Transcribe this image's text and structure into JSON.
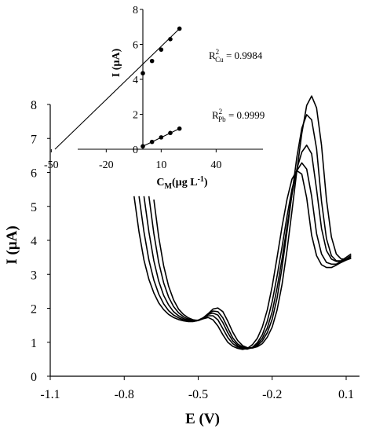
{
  "chart_data": [
    {
      "type": "line",
      "name": "main-voltammogram",
      "xlabel": "E (V)",
      "ylabel": "I (µA)",
      "xlim": [
        -1.1,
        0.15
      ],
      "ylim": [
        0,
        8
      ],
      "xticks": [
        -1.1,
        -0.8,
        -0.5,
        -0.2,
        0.1
      ],
      "xtick_labels": [
        "-1.1",
        "-0.8",
        "-0.5",
        "-0.2",
        "0.1"
      ],
      "yticks": [
        0,
        1,
        2,
        3,
        4,
        5,
        6,
        7,
        8
      ],
      "grid": false,
      "series": [
        {
          "x": [
            -0.68,
            -0.66,
            -0.64,
            -0.62,
            -0.6,
            -0.58,
            -0.56,
            -0.54,
            -0.52,
            -0.5,
            -0.48,
            -0.46,
            -0.44,
            -0.42,
            -0.4,
            -0.38,
            -0.36,
            -0.34,
            -0.32,
            -0.3,
            -0.28,
            -0.26,
            -0.24,
            -0.22,
            -0.2,
            -0.18,
            -0.16,
            -0.14,
            -0.12,
            -0.1,
            -0.08,
            -0.06,
            -0.04,
            -0.02,
            0,
            0.02,
            0.04,
            0.06,
            0.08,
            0.1,
            0.12
          ],
          "y": [
            5.2,
            4.1,
            3.25,
            2.65,
            2.25,
            1.98,
            1.82,
            1.72,
            1.66,
            1.64,
            1.7,
            1.84,
            1.98,
            2.01,
            1.9,
            1.62,
            1.3,
            1.05,
            0.9,
            0.84,
            0.83,
            0.87,
            0.96,
            1.15,
            1.45,
            1.95,
            2.7,
            3.7,
            4.85,
            6.05,
            7.15,
            7.97,
            8.25,
            7.9,
            6.8,
            5.2,
            4.1,
            3.6,
            3.45,
            3.45,
            3.55
          ]
        },
        {
          "x": [
            -0.7,
            -0.68,
            -0.66,
            -0.64,
            -0.62,
            -0.6,
            -0.58,
            -0.56,
            -0.54,
            -0.52,
            -0.5,
            -0.48,
            -0.46,
            -0.44,
            -0.42,
            -0.4,
            -0.38,
            -0.36,
            -0.34,
            -0.32,
            -0.3,
            -0.28,
            -0.26,
            -0.24,
            -0.22,
            -0.2,
            -0.18,
            -0.16,
            -0.14,
            -0.12,
            -0.1,
            -0.08,
            -0.06,
            -0.04,
            -0.02,
            0,
            0.02,
            0.04,
            0.06,
            0.08,
            0.1,
            0.12
          ],
          "y": [
            5.3,
            4.2,
            3.35,
            2.75,
            2.33,
            2.05,
            1.87,
            1.75,
            1.68,
            1.64,
            1.65,
            1.72,
            1.84,
            1.92,
            1.9,
            1.72,
            1.42,
            1.13,
            0.95,
            0.86,
            0.83,
            0.84,
            0.9,
            1.04,
            1.28,
            1.68,
            2.3,
            3.2,
            4.25,
            5.35,
            6.45,
            7.3,
            7.7,
            7.55,
            6.7,
            5.15,
            4.05,
            3.55,
            3.4,
            3.4,
            3.5,
            3.6
          ]
        },
        {
          "x": [
            -0.72,
            -0.7,
            -0.68,
            -0.66,
            -0.64,
            -0.62,
            -0.6,
            -0.58,
            -0.56,
            -0.54,
            -0.52,
            -0.5,
            -0.48,
            -0.46,
            -0.44,
            -0.42,
            -0.4,
            -0.38,
            -0.36,
            -0.34,
            -0.32,
            -0.3,
            -0.28,
            -0.26,
            -0.24,
            -0.22,
            -0.2,
            -0.18,
            -0.16,
            -0.14,
            -0.12,
            -0.1,
            -0.08,
            -0.06,
            -0.04,
            -0.02,
            0,
            0.02,
            0.04,
            0.06,
            0.08,
            0.1,
            0.12
          ],
          "y": [
            5.3,
            4.25,
            3.4,
            2.8,
            2.38,
            2.1,
            1.9,
            1.78,
            1.7,
            1.65,
            1.63,
            1.64,
            1.72,
            1.82,
            1.86,
            1.8,
            1.58,
            1.28,
            1.04,
            0.9,
            0.83,
            0.81,
            0.84,
            0.94,
            1.12,
            1.42,
            1.9,
            2.6,
            3.45,
            4.4,
            5.35,
            6.1,
            6.6,
            6.8,
            6.55,
            5.5,
            4.35,
            3.7,
            3.45,
            3.38,
            3.38,
            3.45,
            3.55
          ]
        },
        {
          "x": [
            -0.74,
            -0.72,
            -0.7,
            -0.68,
            -0.66,
            -0.64,
            -0.62,
            -0.6,
            -0.58,
            -0.56,
            -0.54,
            -0.52,
            -0.5,
            -0.48,
            -0.46,
            -0.44,
            -0.42,
            -0.4,
            -0.38,
            -0.36,
            -0.34,
            -0.32,
            -0.3,
            -0.28,
            -0.26,
            -0.24,
            -0.22,
            -0.2,
            -0.18,
            -0.16,
            -0.14,
            -0.12,
            -0.1,
            -0.08,
            -0.06,
            -0.04,
            -0.02,
            0,
            0.02,
            0.04,
            0.06,
            0.08,
            0.1,
            0.12
          ],
          "y": [
            5.3,
            4.25,
            3.42,
            2.83,
            2.42,
            2.13,
            1.93,
            1.8,
            1.72,
            1.66,
            1.63,
            1.62,
            1.64,
            1.71,
            1.78,
            1.78,
            1.66,
            1.4,
            1.14,
            0.96,
            0.86,
            0.81,
            0.8,
            0.85,
            0.99,
            1.22,
            1.62,
            2.2,
            2.95,
            3.8,
            4.7,
            5.5,
            6.05,
            6.28,
            6.1,
            5.3,
            4.2,
            3.6,
            3.35,
            3.3,
            3.3,
            3.38,
            3.45,
            3.5
          ]
        },
        {
          "x": [
            -0.76,
            -0.74,
            -0.72,
            -0.7,
            -0.68,
            -0.66,
            -0.64,
            -0.62,
            -0.6,
            -0.58,
            -0.56,
            -0.54,
            -0.52,
            -0.5,
            -0.48,
            -0.46,
            -0.44,
            -0.42,
            -0.4,
            -0.38,
            -0.36,
            -0.34,
            -0.32,
            -0.3,
            -0.28,
            -0.26,
            -0.24,
            -0.22,
            -0.2,
            -0.18,
            -0.16,
            -0.14,
            -0.12,
            -0.1,
            -0.08,
            -0.06,
            -0.04,
            -0.02,
            0,
            0.02,
            0.04,
            0.06,
            0.08,
            0.1,
            0.12
          ],
          "y": [
            5.3,
            4.25,
            3.42,
            2.85,
            2.45,
            2.16,
            1.96,
            1.82,
            1.73,
            1.67,
            1.63,
            1.61,
            1.61,
            1.64,
            1.69,
            1.73,
            1.66,
            1.48,
            1.22,
            1.0,
            0.88,
            0.82,
            0.79,
            0.82,
            0.93,
            1.12,
            1.45,
            1.95,
            2.65,
            3.5,
            4.4,
            5.2,
            5.8,
            6.05,
            5.95,
            5.25,
            4.15,
            3.55,
            3.28,
            3.2,
            3.2,
            3.27,
            3.35,
            3.42,
            3.47
          ]
        }
      ]
    },
    {
      "type": "scatter",
      "name": "inset-calibration",
      "xlabel_base": "C",
      "xlabel_sub": "M",
      "xlabel_rest": "(µg L",
      "xlabel_sup": "-1",
      "xlabel_end": ")",
      "ylabel": "I (µA)",
      "xlim": [
        -55,
        45
      ],
      "ylim": [
        0,
        8
      ],
      "xticks": [
        -50,
        -20,
        10,
        40
      ],
      "yticks": [
        0,
        2,
        4,
        6,
        8
      ],
      "series": [
        {
          "x": [
            0,
            5,
            10,
            15,
            20
          ],
          "y": [
            4.35,
            5.05,
            5.7,
            6.3,
            6.9
          ],
          "fit_line": {
            "x": [
              -48,
              20
            ],
            "y": [
              0,
              6.9
            ]
          },
          "annotation": {
            "base": "R",
            "sup": "2",
            "sub": "Cu",
            "value": " = 0.9984"
          }
        },
        {
          "x": [
            0,
            5,
            10,
            15,
            20
          ],
          "y": [
            0.17,
            0.42,
            0.68,
            0.93,
            1.18
          ],
          "fit_line": {
            "x": [
              0,
              20
            ],
            "y": [
              0.17,
              1.18
            ]
          },
          "annotation": {
            "base": "R",
            "sup": "2",
            "sub": "Pb",
            "value": " = 0.9999"
          }
        }
      ]
    }
  ]
}
